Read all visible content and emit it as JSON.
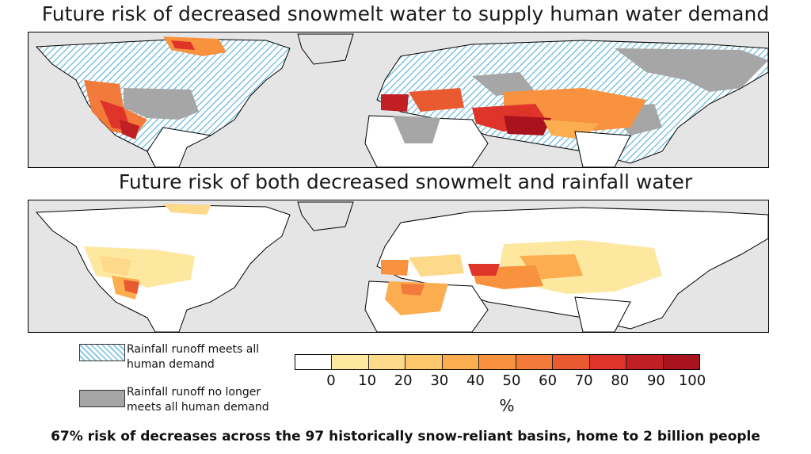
{
  "titles": {
    "top": "Future risk of decreased snowmelt water to supply human water demand",
    "bottom": "Future risk of both decreased snowmelt and rainfall water"
  },
  "legend": {
    "hatched_label": "Rainfall runoff meets all human demand",
    "gray_label": "Rainfall runoff no longer meets all human demand",
    "hatch_color": "#8ecae6",
    "gray_color": "#a6a6a6"
  },
  "colorbar": {
    "colors": [
      "#ffffff",
      "#fee8a0",
      "#fdd98a",
      "#fcc86b",
      "#fcad50",
      "#f8923f",
      "#f27a3a",
      "#ea5a30",
      "#de3429",
      "#c01f24",
      "#a8131e"
    ],
    "ticks": [
      "0",
      "10",
      "20",
      "30",
      "40",
      "50",
      "60",
      "70",
      "80",
      "90",
      "100"
    ],
    "unit": "%"
  },
  "footer": "67% risk of decreases across the 97 historically snow-reliant basins, home to 2 billion people"
}
